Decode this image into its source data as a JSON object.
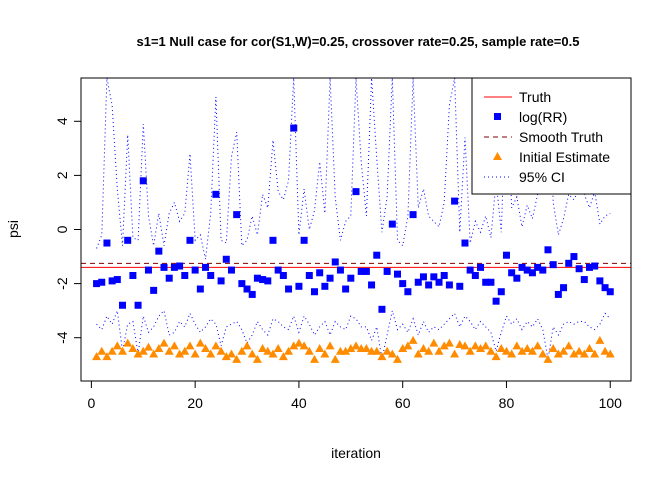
{
  "chart_data": {
    "type": "scatter",
    "title": "s1=1 Null case for cor(S1,W)=0.25, crossover rate=0.25, sample rate=0.5",
    "xlabel": "iteration",
    "ylabel": "psi",
    "xlim": [
      -2,
      104
    ],
    "ylim": [
      -5.6,
      5.6
    ],
    "xticks": [
      "0",
      "20",
      "40",
      "60",
      "80",
      "100"
    ],
    "yticks": [
      "-4",
      "-2",
      "0",
      "2",
      "4"
    ],
    "xtick_values": [
      0,
      20,
      40,
      60,
      80,
      100
    ],
    "ytick_values": [
      -4,
      -2,
      0,
      2,
      4
    ],
    "legend_position": "top-right",
    "colors": {
      "truth": "#ff0000",
      "log_rr": "#0000ff",
      "smooth_truth": "#800000",
      "initial_estimate": "#ff8c00",
      "ci": "#0000ff"
    },
    "legend": [
      "Truth",
      "log(RR)",
      "Smooth Truth",
      "Initial Estimate",
      "95% CI"
    ],
    "truth": -1.4,
    "smooth_truth": -1.25,
    "x": [
      1,
      2,
      3,
      4,
      5,
      6,
      7,
      8,
      9,
      10,
      11,
      12,
      13,
      14,
      15,
      16,
      17,
      18,
      19,
      20,
      21,
      22,
      23,
      24,
      25,
      26,
      27,
      28,
      29,
      30,
      31,
      32,
      33,
      34,
      35,
      36,
      37,
      38,
      39,
      40,
      41,
      42,
      43,
      44,
      45,
      46,
      47,
      48,
      49,
      50,
      51,
      52,
      53,
      54,
      55,
      56,
      57,
      58,
      59,
      60,
      61,
      62,
      63,
      64,
      65,
      66,
      67,
      68,
      69,
      70,
      71,
      72,
      73,
      74,
      75,
      76,
      77,
      78,
      79,
      80,
      81,
      82,
      83,
      84,
      85,
      86,
      87,
      88,
      89,
      90,
      91,
      92,
      93,
      94,
      95,
      96,
      97,
      98,
      99,
      100
    ],
    "series": [
      {
        "name": "log(RR)",
        "values": [
          -2.0,
          -1.95,
          -0.5,
          -1.9,
          -1.85,
          -2.8,
          -0.4,
          -1.7,
          -2.8,
          1.8,
          -1.5,
          -2.25,
          -0.8,
          -1.4,
          -1.8,
          -1.4,
          -1.35,
          -1.7,
          -0.4,
          -1.5,
          -2.2,
          -1.4,
          -1.7,
          1.3,
          -1.9,
          -1.1,
          -1.5,
          0.55,
          -2.0,
          -2.2,
          -2.4,
          -1.8,
          -1.85,
          -1.9,
          -0.4,
          -1.5,
          -1.7,
          -2.2,
          3.75,
          -2.1,
          -0.4,
          -1.7,
          -2.3,
          -1.6,
          -2.1,
          -1.8,
          -1.2,
          -1.5,
          -2.2,
          -1.8,
          1.4,
          -1.55,
          -1.55,
          -2.05,
          -0.95,
          -2.95,
          -1.55,
          0.2,
          -1.65,
          -2.0,
          -2.3,
          0.55,
          -1.95,
          -1.75,
          -2.05,
          -1.75,
          -1.95,
          -1.7,
          -2.05,
          1.05,
          -2.1,
          -0.5,
          -1.5,
          -1.7,
          -1.4,
          -1.95,
          -1.95,
          -2.65,
          -2.3,
          -0.95,
          -1.6,
          -1.8,
          -1.4,
          -1.5,
          -1.6,
          -1.4,
          -1.5,
          -0.75,
          -1.3,
          -2.4,
          -2.15,
          -1.25,
          -1.0,
          -1.45,
          -1.85,
          -1.4,
          -1.35,
          -1.9,
          -2.15,
          -2.3
        ]
      },
      {
        "name": "Initial Estimate",
        "values": [
          -4.7,
          -4.5,
          -4.7,
          -4.5,
          -4.3,
          -4.5,
          -4.2,
          -4.4,
          -4.6,
          -4.5,
          -4.35,
          -4.6,
          -4.4,
          -4.2,
          -4.5,
          -4.3,
          -4.6,
          -4.5,
          -4.3,
          -4.6,
          -4.2,
          -4.4,
          -4.6,
          -4.3,
          -4.5,
          -4.7,
          -4.6,
          -4.8,
          -4.5,
          -4.3,
          -4.6,
          -4.8,
          -4.4,
          -4.5,
          -4.6,
          -4.4,
          -4.7,
          -4.5,
          -4.3,
          -4.2,
          -4.3,
          -4.5,
          -4.8,
          -4.4,
          -4.6,
          -4.3,
          -4.8,
          -4.5,
          -4.5,
          -4.4,
          -4.3,
          -4.4,
          -4.4,
          -4.5,
          -4.5,
          -4.7,
          -4.5,
          -4.6,
          -4.8,
          -4.4,
          -4.3,
          -4.1,
          -4.6,
          -4.4,
          -4.5,
          -4.2,
          -4.5,
          -4.3,
          -4.2,
          -4.6,
          -4.25,
          -4.3,
          -4.5,
          -4.3,
          -4.4,
          -4.3,
          -4.5,
          -4.7,
          -4.4,
          -4.5,
          -4.6,
          -4.3,
          -4.5,
          -4.4,
          -4.5,
          -4.3,
          -4.6,
          -4.8,
          -4.4,
          -4.6,
          -4.5,
          -4.3,
          -4.6,
          -4.5,
          -4.6,
          -4.4,
          -4.6,
          -4.1,
          -4.5,
          -4.6
        ]
      },
      {
        "name": "95% CI upper",
        "values": [
          -0.7,
          -0.2,
          5.6,
          4.6,
          1.5,
          -0.6,
          3.5,
          -0.3,
          -0.4,
          3.9,
          0.5,
          -0.6,
          0.6,
          -0.6,
          0.6,
          1.0,
          0.3,
          0.6,
          2.8,
          -0.4,
          -0.2,
          -1.1,
          0.6,
          4.9,
          -0.4,
          -0.5,
          2.7,
          3.6,
          -0.6,
          -0.4,
          0.5,
          -0.2,
          1.3,
          0.8,
          3.3,
          1.4,
          1.1,
          1.8,
          5.6,
          -0.2,
          1.5,
          0.0,
          0.7,
          2.5,
          0.6,
          5.6,
          1.2,
          -0.4,
          0.3,
          0.5,
          5.6,
          2.5,
          0.5,
          5.6,
          2.6,
          -0.1,
          1.2,
          5.6,
          -0.4,
          -0.6,
          0.5,
          5.6,
          0.8,
          1.5,
          0.5,
          0.3,
          0.1,
          1.0,
          4.6,
          5.6,
          -0.1,
          3.4,
          -0.5,
          0.3,
          -0.1,
          0.5,
          -0.3,
          1.8,
          -0.1,
          5.6,
          0.8,
          1.2,
          0.1,
          0.9,
          0.4,
          1.3,
          1.8,
          5.6,
          1.0,
          -0.2,
          0.4,
          1.3,
          1.1,
          1.5,
          1.3,
          0.8,
          1.4,
          0.2,
          0.5,
          0.6
        ]
      },
      {
        "name": "95% CI lower",
        "values": [
          -3.5,
          -3.7,
          -3.2,
          -3.5,
          -3.0,
          -4.5,
          -3.5,
          -3.4,
          -4.6,
          -3.2,
          -3.8,
          -3.6,
          -3.2,
          -3.0,
          -3.9,
          -3.8,
          -3.4,
          -3.6,
          -3.1,
          -3.5,
          -3.8,
          -3.6,
          -3.3,
          -3.5,
          -4.3,
          -3.6,
          -3.5,
          -3.4,
          -3.7,
          -4.2,
          -3.9,
          -3.4,
          -3.7,
          -3.9,
          -3.3,
          -3.4,
          -3.6,
          -3.7,
          -3.2,
          -3.8,
          -3.2,
          -3.5,
          -3.9,
          -3.6,
          -3.4,
          -3.9,
          -3.4,
          -3.6,
          -3.7,
          -3.2,
          -3.3,
          -3.6,
          -3.6,
          -4.1,
          -3.6,
          -4.8,
          -3.9,
          -3.0,
          -3.7,
          -3.5,
          -3.8,
          -3.3,
          -3.9,
          -3.4,
          -3.8,
          -3.6,
          -3.7,
          -3.5,
          -3.3,
          -3.1,
          -3.6,
          -3.2,
          -3.4,
          -3.7,
          -3.4,
          -3.6,
          -3.8,
          -4.5,
          -3.8,
          -3.2,
          -3.5,
          -3.3,
          -3.7,
          -3.4,
          -3.6,
          -3.3,
          -3.7,
          -4.8,
          -3.6,
          -3.9,
          -3.5,
          -3.4,
          -3.5,
          -3.4,
          -3.4,
          -3.6,
          -3.7,
          -3.5,
          -3.1,
          -3.3
        ]
      }
    ]
  }
}
